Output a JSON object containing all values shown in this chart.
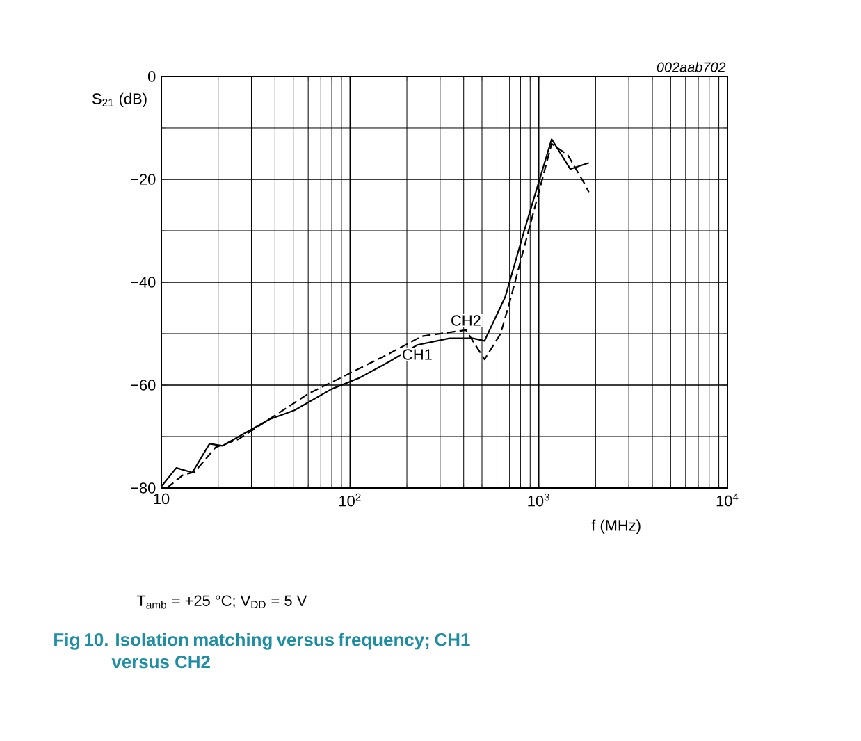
{
  "chart_data": {
    "type": "line",
    "title": "Fig 10. Isolation matching versus frequency; CH1 versus CH2",
    "ylabel": "S$_{21}$ (dB)",
    "xlabel": "f (MHz)",
    "annotations": [
      "002aab702",
      "T$_{amb}$ = +25 °C; V$_{DD}$ = 5 V"
    ],
    "log": "x",
    "grid": true,
    "xlim": [
      10,
      10000
    ],
    "ylim": [
      -80,
      0
    ],
    "xticks": [
      10,
      {
        "value": 100,
        "label": "10$^{2}$"
      },
      {
        "value": 1000,
        "label": "10$^{3}$"
      },
      {
        "value": 10000,
        "label": "10$^{4}$"
      }
    ],
    "yticks": [
      {
        "value": -80,
        "label": "−80"
      },
      {
        "value": -60,
        "label": "−60"
      },
      {
        "value": -40,
        "label": "−40"
      },
      {
        "value": -20,
        "label": "−20"
      },
      0
    ],
    "series": [
      {
        "name": "CH1",
        "color": "#000000",
        "line_style": "solid",
        "x": [
          10,
          12,
          14.6,
          18,
          21.1,
          37.2,
          50.7,
          79.6,
          112,
          162,
          227,
          337,
          448,
          516,
          665,
          834,
          1170,
          1468,
          1842
        ],
        "values": [
          -79.7,
          -76.1,
          -77.0,
          -71.4,
          -71.8,
          -66.7,
          -64.9,
          -60.8,
          -58.6,
          -55.4,
          -52.2,
          -50.9,
          -50.9,
          -51.4,
          -42.8,
          -30.2,
          -12.2,
          -18.0,
          -16.8
        ]
      },
      {
        "name": "CH2",
        "color": "#000000",
        "line_style": "dashed",
        "x": [
          10.7,
          13,
          15,
          19.4,
          25.7,
          60,
          89,
          157,
          240,
          411,
          516,
          628,
          703,
          1170,
          1426,
          1738,
          1842
        ],
        "values": [
          -80,
          -77.5,
          -76.9,
          -72.1,
          -70.5,
          -61.7,
          -58.6,
          -54.1,
          -50.5,
          -49.3,
          -55,
          -50,
          -43.7,
          -13.1,
          -15.3,
          -20.7,
          -22.5
        ]
      }
    ]
  }
}
